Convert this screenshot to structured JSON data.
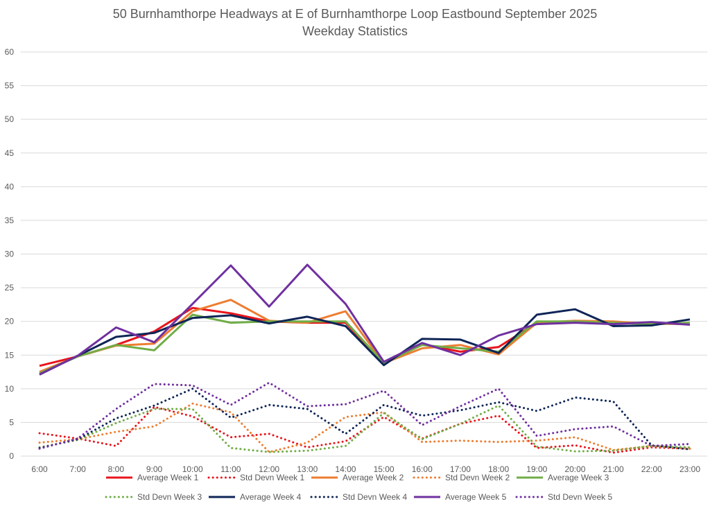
{
  "chart_data": {
    "type": "line",
    "title": "50 Burnhamthorpe Headways at E of Burnhamthorpe Loop Eastbound September 2025",
    "subtitle": "Weekday Statistics",
    "xlabel": "",
    "ylabel": "",
    "ylim": [
      0,
      60
    ],
    "yticks": [
      0,
      5,
      10,
      15,
      20,
      25,
      30,
      35,
      40,
      45,
      50,
      55,
      60
    ],
    "grid": true,
    "legend_position": "bottom",
    "categories": [
      "6:00",
      "7:00",
      "8:00",
      "9:00",
      "10:00",
      "11:00",
      "12:00",
      "13:00",
      "14:00",
      "15:00",
      "16:00",
      "17:00",
      "18:00",
      "19:00",
      "20:00",
      "21:00",
      "22:00",
      "23:00"
    ],
    "series": [
      {
        "name": "Average Week 1",
        "color": "#e8141c",
        "style": "solid",
        "values": [
          13.4,
          14.8,
          16.5,
          18.5,
          22.0,
          21.2,
          20.0,
          19.8,
          19.8,
          13.7,
          16.6,
          15.5,
          16.2,
          19.8,
          20.0,
          19.9,
          19.7,
          19.6
        ]
      },
      {
        "name": "Std Devn Week 1",
        "color": "#e8141c",
        "style": "dotted",
        "values": [
          3.4,
          2.6,
          1.5,
          7.3,
          5.9,
          2.8,
          3.3,
          1.3,
          2.2,
          5.8,
          2.6,
          4.8,
          6.0,
          1.2,
          1.6,
          0.5,
          1.3,
          1.1
        ]
      },
      {
        "name": "Average Week 2",
        "color": "#ed7d31",
        "style": "solid",
        "values": [
          12.5,
          14.8,
          16.4,
          16.7,
          21.5,
          23.2,
          20.1,
          19.8,
          21.5,
          13.8,
          16.0,
          16.5,
          15.1,
          19.8,
          20.1,
          20.0,
          19.6,
          19.7
        ]
      },
      {
        "name": "Std Devn Week 2",
        "color": "#ed7d31",
        "style": "dotted",
        "values": [
          2.0,
          2.5,
          3.6,
          4.4,
          7.8,
          6.5,
          0.6,
          2.0,
          5.8,
          6.5,
          2.1,
          2.3,
          2.1,
          2.3,
          2.8,
          0.9,
          1.5,
          1.1
        ]
      },
      {
        "name": "Average Week 3",
        "color": "#70ad47",
        "style": "solid",
        "values": [
          12.3,
          14.8,
          16.5,
          15.7,
          21.0,
          19.8,
          20.0,
          20.0,
          20.0,
          13.8,
          16.5,
          16.0,
          15.5,
          20.0,
          20.0,
          19.8,
          19.6,
          19.8
        ]
      },
      {
        "name": "Std Devn Week 3",
        "color": "#70ad47",
        "style": "dotted",
        "values": [
          1.3,
          2.4,
          4.9,
          7.0,
          7.0,
          1.2,
          0.6,
          0.8,
          1.5,
          6.4,
          2.5,
          4.8,
          7.5,
          1.4,
          0.7,
          0.8,
          1.5,
          1.3
        ]
      },
      {
        "name": "Average Week 4",
        "color": "#0e2557",
        "style": "solid",
        "values": [
          12.1,
          14.9,
          17.7,
          18.3,
          20.5,
          20.9,
          19.7,
          20.7,
          19.3,
          13.5,
          17.4,
          17.3,
          15.3,
          21.0,
          21.8,
          19.3,
          19.4,
          20.3
        ]
      },
      {
        "name": "Std Devn Week 4",
        "color": "#0e2557",
        "style": "dotted",
        "values": [
          1.2,
          2.5,
          5.6,
          7.5,
          10.0,
          5.7,
          7.6,
          7.0,
          3.3,
          7.6,
          6.0,
          6.8,
          8.0,
          6.7,
          8.7,
          8.1,
          1.6,
          1.0
        ]
      },
      {
        "name": "Average Week 5",
        "color": "#7030a0",
        "style": "solid",
        "values": [
          12.1,
          14.9,
          19.1,
          16.9,
          22.6,
          28.3,
          22.2,
          28.4,
          22.6,
          14.0,
          16.8,
          15.0,
          17.9,
          19.6,
          19.8,
          19.6,
          19.9,
          19.5
        ]
      },
      {
        "name": "Std Devn Week 5",
        "color": "#7030a0",
        "style": "dotted",
        "values": [
          1.1,
          2.6,
          7.0,
          10.7,
          10.5,
          7.6,
          10.9,
          7.4,
          7.7,
          9.7,
          4.6,
          7.4,
          10.0,
          3.0,
          4.0,
          4.4,
          1.5,
          1.8
        ]
      }
    ]
  }
}
